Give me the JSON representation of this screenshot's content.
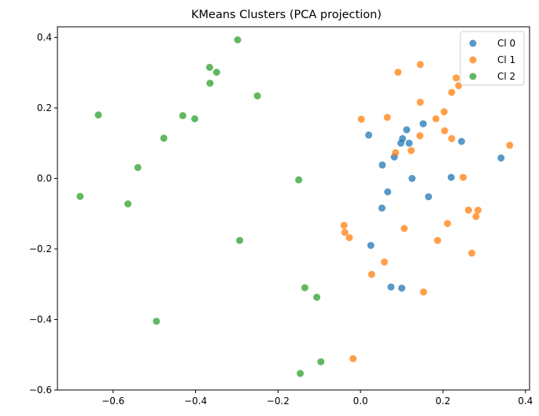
{
  "chart_data": {
    "type": "scatter",
    "title": "KMeans Clusters (PCA projection)",
    "xlabel": "",
    "ylabel": "",
    "xlim": [
      -0.735,
      0.41
    ],
    "ylim": [
      -0.6,
      0.43
    ],
    "xticks": [
      -0.6,
      -0.4,
      -0.2,
      0.0,
      0.2,
      0.4
    ],
    "xtick_labels": [
      "−0.6",
      "−0.4",
      "−0.2",
      "0.0",
      "0.2",
      "0.4"
    ],
    "yticks": [
      -0.6,
      -0.4,
      -0.2,
      0.0,
      0.2,
      0.4
    ],
    "ytick_labels": [
      "−0.6",
      "−0.4",
      "−0.2",
      "0.0",
      "0.2",
      "0.4"
    ],
    "grid": false,
    "legend_position": "top-right",
    "series": [
      {
        "name": "Cl 0",
        "color": "#1f77b4",
        "points": [
          [
            0.02,
            0.123
          ],
          [
            0.098,
            0.1
          ],
          [
            0.102,
            0.113
          ],
          [
            0.112,
            0.138
          ],
          [
            0.118,
            0.1
          ],
          [
            0.152,
            0.155
          ],
          [
            0.082,
            0.061
          ],
          [
            0.053,
            0.038
          ],
          [
            0.125,
            0.0
          ],
          [
            0.22,
            0.003
          ],
          [
            0.245,
            0.105
          ],
          [
            0.341,
            0.058
          ],
          [
            0.066,
            -0.038
          ],
          [
            0.165,
            -0.052
          ],
          [
            0.052,
            -0.084
          ],
          [
            0.025,
            -0.19
          ],
          [
            0.074,
            -0.308
          ],
          [
            0.1,
            -0.311
          ]
        ]
      },
      {
        "name": "Cl 1",
        "color": "#ff7f0e",
        "points": [
          [
            0.145,
            0.323
          ],
          [
            0.091,
            0.301
          ],
          [
            0.232,
            0.285
          ],
          [
            0.238,
            0.263
          ],
          [
            0.221,
            0.244
          ],
          [
            0.145,
            0.216
          ],
          [
            0.203,
            0.189
          ],
          [
            0.065,
            0.173
          ],
          [
            0.002,
            0.168
          ],
          [
            0.183,
            0.169
          ],
          [
            0.204,
            0.135
          ],
          [
            0.144,
            0.121
          ],
          [
            0.221,
            0.113
          ],
          [
            0.362,
            0.094
          ],
          [
            0.123,
            0.079
          ],
          [
            0.085,
            0.073
          ],
          [
            0.249,
            0.003
          ],
          [
            0.262,
            -0.09
          ],
          [
            0.285,
            -0.09
          ],
          [
            0.28,
            -0.108
          ],
          [
            0.211,
            -0.128
          ],
          [
            -0.04,
            -0.133
          ],
          [
            -0.038,
            -0.153
          ],
          [
            0.106,
            -0.142
          ],
          [
            -0.027,
            -0.168
          ],
          [
            0.187,
            -0.176
          ],
          [
            0.27,
            -0.212
          ],
          [
            0.058,
            -0.237
          ],
          [
            0.027,
            -0.272
          ],
          [
            0.153,
            -0.322
          ],
          [
            -0.018,
            -0.511
          ]
        ]
      },
      {
        "name": "Cl 2",
        "color": "#2ca02c",
        "points": [
          [
            -0.298,
            0.393
          ],
          [
            -0.366,
            0.315
          ],
          [
            -0.349,
            0.301
          ],
          [
            -0.365,
            0.27
          ],
          [
            -0.25,
            0.234
          ],
          [
            -0.636,
            0.18
          ],
          [
            -0.431,
            0.178
          ],
          [
            -0.402,
            0.169
          ],
          [
            -0.477,
            0.114
          ],
          [
            -0.54,
            0.031
          ],
          [
            -0.15,
            -0.004
          ],
          [
            -0.68,
            -0.051
          ],
          [
            -0.564,
            -0.072
          ],
          [
            -0.293,
            -0.176
          ],
          [
            -0.135,
            -0.31
          ],
          [
            -0.106,
            -0.337
          ],
          [
            -0.495,
            -0.405
          ],
          [
            -0.096,
            -0.52
          ],
          [
            -0.146,
            -0.553
          ]
        ]
      }
    ]
  }
}
